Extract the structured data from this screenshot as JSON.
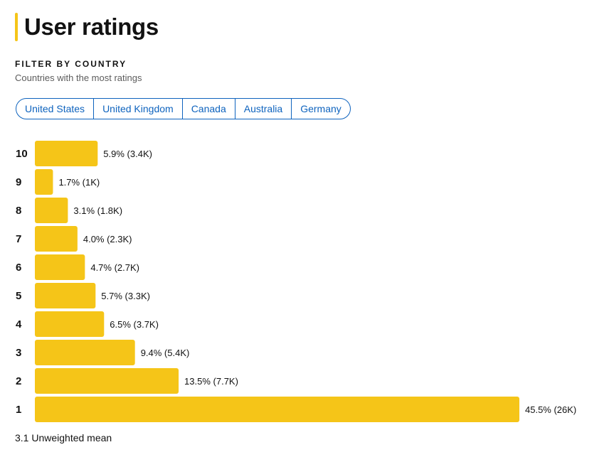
{
  "header": {
    "title": "User ratings"
  },
  "filter": {
    "heading": "FILTER BY COUNTRY",
    "subheading": "Countries with the most ratings",
    "countries": [
      "United States",
      "United Kingdom",
      "Canada",
      "Australia",
      "Germany"
    ]
  },
  "colors": {
    "accent": "#f5c518",
    "link": "#0e63be",
    "bar": "#f5c518"
  },
  "chart_data": {
    "type": "bar",
    "orientation": "horizontal",
    "categories": [
      "10",
      "9",
      "8",
      "7",
      "6",
      "5",
      "4",
      "3",
      "2",
      "1"
    ],
    "values": [
      5.9,
      1.7,
      3.1,
      4.0,
      4.7,
      5.7,
      6.5,
      9.4,
      13.5,
      45.5
    ],
    "value_unit": "%",
    "data_labels": [
      "5.9% (3.4K)",
      "1.7% (1K)",
      "3.1% (1.8K)",
      "4.0% (2.3K)",
      "4.7% (2.7K)",
      "5.7% (3.3K)",
      "6.5% (3.7K)",
      "9.4% (5.4K)",
      "13.5% (7.7K)",
      "45.5% (26K)"
    ],
    "title": "",
    "xlabel": "",
    "ylabel": "",
    "grid": false
  },
  "summary": {
    "mean_text": "3.1 Unweighted mean"
  }
}
